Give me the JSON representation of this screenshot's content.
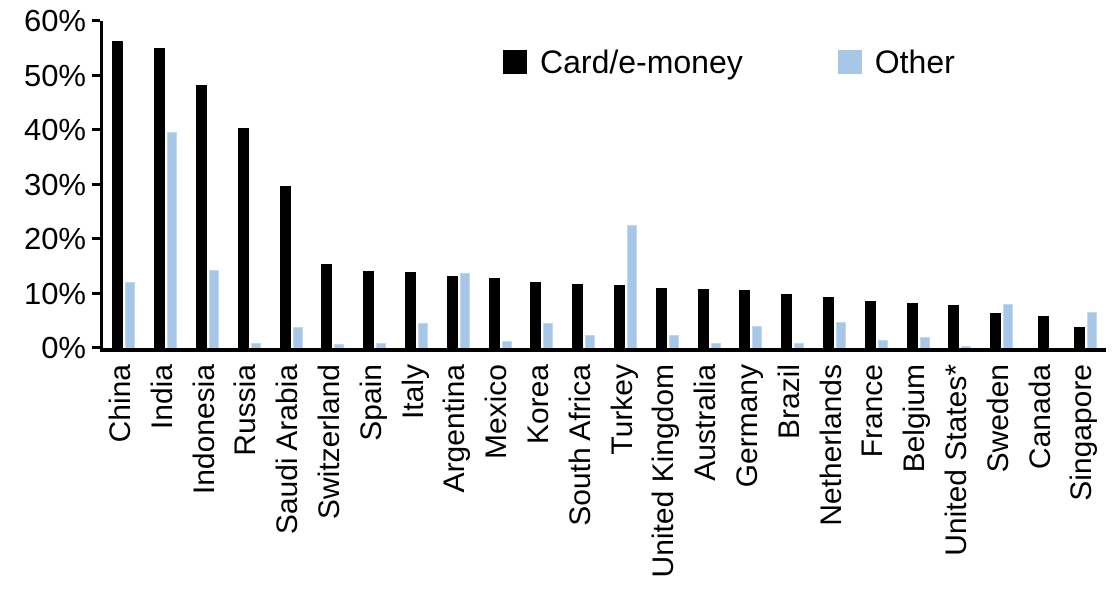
{
  "chart_data": {
    "type": "bar",
    "title": "",
    "xlabel": "",
    "ylabel": "",
    "ylim": [
      0,
      60
    ],
    "yticks": [
      "0%",
      "10%",
      "20%",
      "30%",
      "40%",
      "50%",
      "60%"
    ],
    "grid": false,
    "legend_position": "top-center",
    "categories": [
      "China",
      "India",
      "Indonesia",
      "Russia",
      "Saudi Arabia",
      "Switzerland",
      "Spain",
      "Italy",
      "Argentina",
      "Mexico",
      "Korea",
      "South Africa",
      "Turkey",
      "United Kingdom",
      "Australia",
      "Germany",
      "Brazil",
      "Netherlands",
      "France",
      "Belgium",
      "United States*",
      "Sweden",
      "Canada",
      "Singapore"
    ],
    "series": [
      {
        "name": "Card/e-money",
        "color": "#000000",
        "values": [
          56.3,
          55.0,
          48.3,
          40.4,
          29.7,
          15.5,
          14.1,
          14.0,
          13.3,
          12.9,
          12.2,
          11.7,
          11.6,
          11.0,
          10.8,
          10.6,
          10.0,
          9.3,
          8.7,
          8.2,
          7.9,
          6.5,
          5.9,
          3.9
        ]
      },
      {
        "name": "Other",
        "color": "#a7c7e9",
        "values": [
          12.2,
          39.6,
          14.4,
          0.9,
          3.8,
          0.7,
          0.9,
          4.5,
          13.8,
          1.2,
          4.6,
          2.4,
          22.5,
          2.3,
          1.0,
          4.0,
          1.0,
          4.8,
          1.5,
          2.0,
          0.3,
          8.0,
          0.0,
          6.6
        ]
      }
    ]
  }
}
